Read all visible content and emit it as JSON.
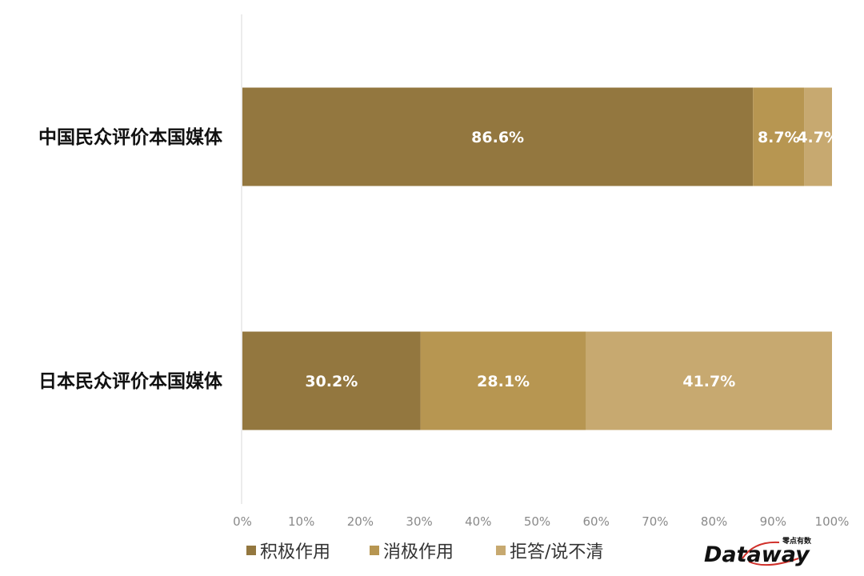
{
  "chart_data": {
    "type": "bar",
    "orientation": "horizontal",
    "stacked": true,
    "categories": [
      "中国民众评价本国媒体",
      "日本民众评价本国媒体"
    ],
    "series": [
      {
        "name": "积极作用",
        "values": [
          86.6,
          30.2
        ],
        "labels": [
          "86.6%",
          "30.2%"
        ],
        "color": "#93773F"
      },
      {
        "name": "消极作用",
        "values": [
          8.7,
          28.1
        ],
        "labels": [
          "8.7%",
          "28.1%"
        ],
        "color": "#B79651"
      },
      {
        "name": "拒答/说不清",
        "values": [
          4.7,
          41.7
        ],
        "labels": [
          "4.7%",
          "41.7%"
        ],
        "color": "#C7A970"
      }
    ],
    "xlim": [
      0,
      100
    ],
    "xticks": [
      "0%",
      "10%",
      "20%",
      "30%",
      "40%",
      "50%",
      "60%",
      "70%",
      "80%",
      "90%",
      "100%"
    ],
    "legend_position": "bottom",
    "grid": false
  },
  "watermark": {
    "brand": "Dataway",
    "sub": "零点有数"
  }
}
